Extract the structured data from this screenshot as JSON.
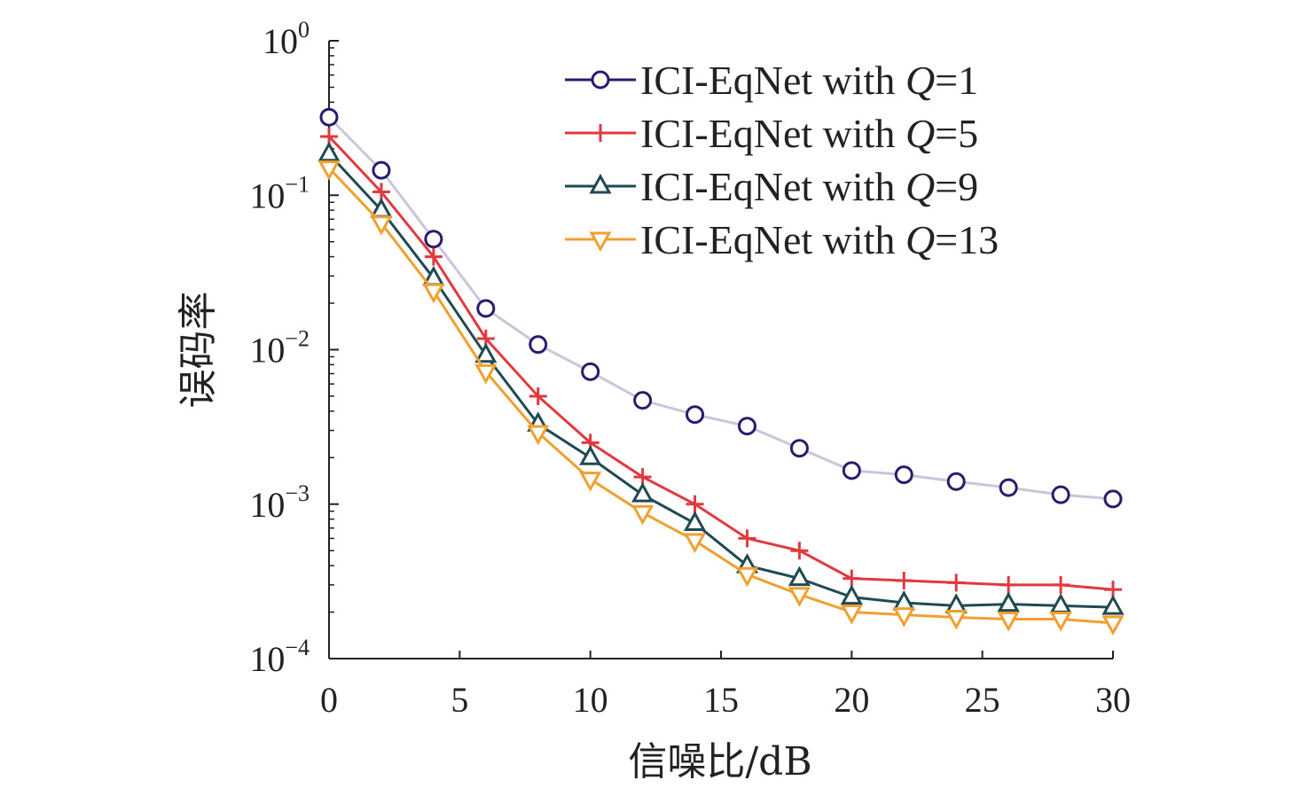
{
  "chart_data": {
    "type": "line",
    "x_scale": "linear",
    "y_scale": "log",
    "xlim": [
      0,
      30
    ],
    "ylim": [
      0.0001,
      1
    ],
    "xlabel": "信噪比/dB",
    "ylabel": "误码率",
    "x_ticks": [
      0,
      5,
      10,
      15,
      20,
      25,
      30
    ],
    "y_ticks": [
      {
        "base": "10",
        "exp": "0"
      },
      {
        "base": "10",
        "exp": "−1"
      },
      {
        "base": "10",
        "exp": "−2"
      },
      {
        "base": "10",
        "exp": "−3"
      },
      {
        "base": "10",
        "exp": "−4"
      }
    ],
    "grid": false,
    "legend_position": "top-right",
    "x": [
      0,
      2,
      4,
      6,
      8,
      10,
      12,
      14,
      16,
      18,
      20,
      22,
      24,
      26,
      28,
      30
    ],
    "series": [
      {
        "name_prefix": "ICI-EqNet with ",
        "name_var": "Q",
        "name_suffix": "=1",
        "color": "#2b1a6e",
        "line_color": "#c9c6dc",
        "marker": "circle",
        "values": [
          0.32,
          0.145,
          0.052,
          0.0185,
          0.0108,
          0.0072,
          0.0047,
          0.0038,
          0.0032,
          0.0023,
          0.00165,
          0.00155,
          0.0014,
          0.00128,
          0.00115,
          0.00108
        ]
      },
      {
        "name_prefix": "ICI-EqNet with ",
        "name_var": "Q",
        "name_suffix": "=5",
        "color": "#e0393f",
        "line_color": "#e0393f",
        "marker": "plus",
        "values": [
          0.24,
          0.105,
          0.04,
          0.0118,
          0.005,
          0.0025,
          0.0015,
          0.001,
          0.0006,
          0.0005,
          0.00033,
          0.00032,
          0.00031,
          0.0003,
          0.0003,
          0.00028
        ]
      },
      {
        "name_prefix": "ICI-EqNet with ",
        "name_var": "Q",
        "name_suffix": "=9",
        "color": "#1f4a52",
        "line_color": "#1f4a52",
        "marker": "triangle-up",
        "values": [
          0.185,
          0.08,
          0.029,
          0.0092,
          0.0033,
          0.002,
          0.00115,
          0.00075,
          0.0004,
          0.00033,
          0.00025,
          0.00023,
          0.00022,
          0.000225,
          0.00022,
          0.000215
        ]
      },
      {
        "name_prefix": "ICI-EqNet with ",
        "name_var": "Q",
        "name_suffix": "=13",
        "color": "#f0a030",
        "line_color": "#f0a030",
        "marker": "triangle-down",
        "values": [
          0.15,
          0.066,
          0.024,
          0.0072,
          0.0029,
          0.00145,
          0.00088,
          0.00058,
          0.00035,
          0.00026,
          0.0002,
          0.000192,
          0.000185,
          0.00018,
          0.00018,
          0.00017
        ]
      }
    ]
  }
}
